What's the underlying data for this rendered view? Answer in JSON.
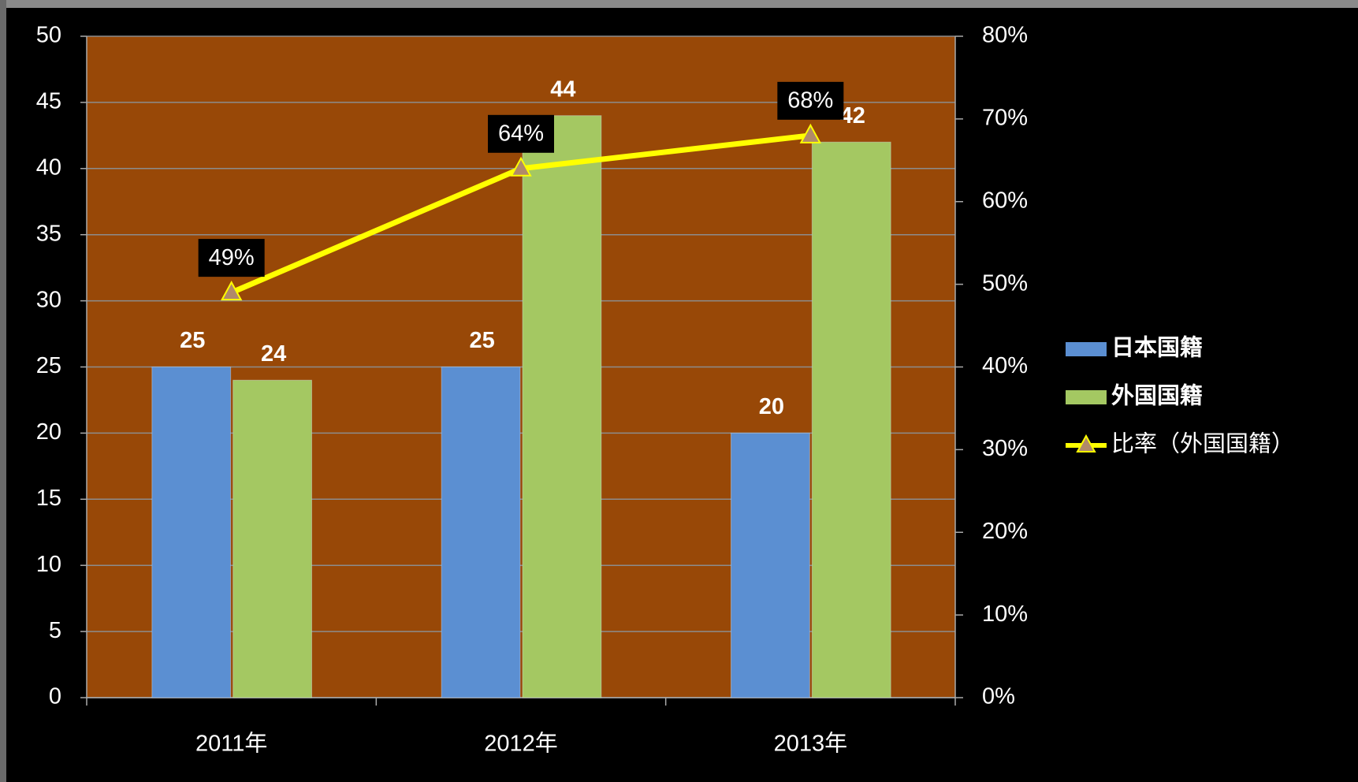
{
  "chart_data": {
    "type": "bar",
    "categories": [
      "2011年",
      "2012年",
      "2013年"
    ],
    "series": [
      {
        "name": "日本国籍",
        "color": "#5b8fd2",
        "values": [
          25,
          25,
          20
        ]
      },
      {
        "name": "外国国籍",
        "color": "#a4c862",
        "values": [
          24,
          44,
          42
        ]
      },
      {
        "name": "比率（外国国籍）",
        "color": "#ffff00",
        "type": "line",
        "axis": "y2",
        "values": [
          49,
          64,
          68
        ],
        "value_labels": [
          "49%",
          "64%",
          "68%"
        ]
      }
    ],
    "ylim": [
      0,
      50
    ],
    "yticks": [
      0,
      5,
      10,
      15,
      20,
      25,
      30,
      35,
      40,
      45,
      50
    ],
    "y2lim": [
      0,
      80
    ],
    "y2ticks": [
      {
        "value": 0,
        "label": "0%"
      },
      {
        "value": 10,
        "label": "10%"
      },
      {
        "value": 20,
        "label": "20%"
      },
      {
        "value": 30,
        "label": "30%"
      },
      {
        "value": 40,
        "label": "40%"
      },
      {
        "value": 50,
        "label": "50%"
      },
      {
        "value": 60,
        "label": "60%"
      },
      {
        "value": 70,
        "label": "70%"
      },
      {
        "value": 80,
        "label": "80%"
      }
    ],
    "grid": true,
    "plot_background": "#984807",
    "legend": "right"
  }
}
